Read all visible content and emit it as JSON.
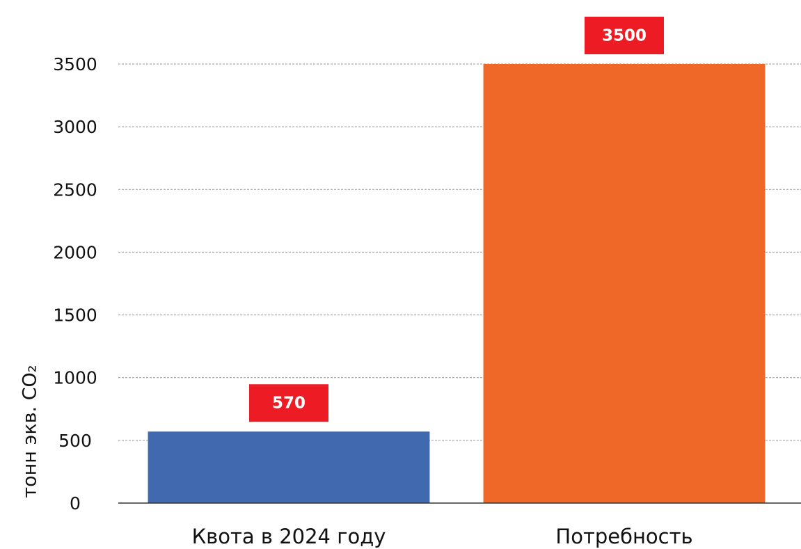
{
  "chart_data": {
    "type": "bar",
    "y_label": "тонн экв. CO₂",
    "categories": [
      "Квота в 2024 году",
      "Потребность"
    ],
    "values": [
      570,
      3500
    ],
    "colors": [
      "#4169b0",
      "#f06827"
    ],
    "label_color": "#ed1c24",
    "ylim": [
      0,
      3500
    ],
    "yticks": [
      0,
      500,
      1000,
      1500,
      2000,
      2500,
      3000,
      3500
    ],
    "grid": true
  }
}
